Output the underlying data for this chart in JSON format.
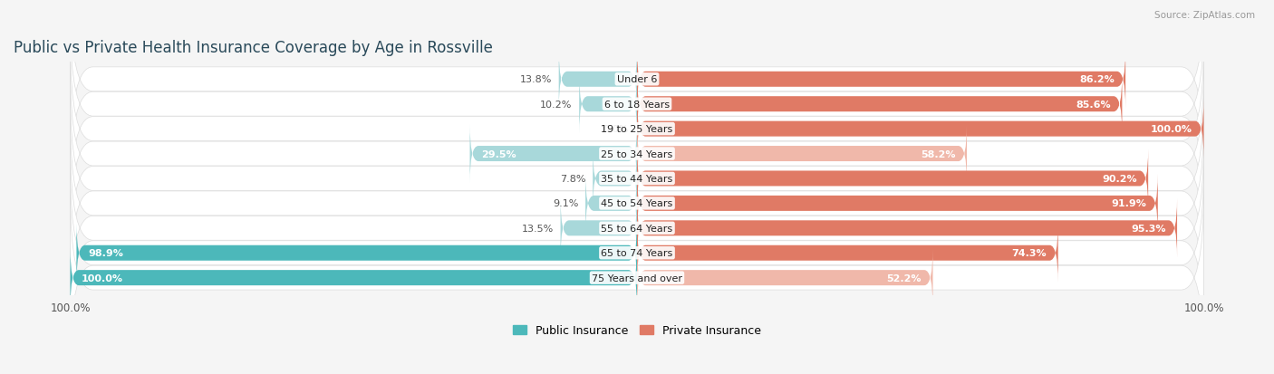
{
  "title": "Public vs Private Health Insurance Coverage by Age in Rossville",
  "source": "Source: ZipAtlas.com",
  "categories": [
    "Under 6",
    "6 to 18 Years",
    "19 to 25 Years",
    "25 to 34 Years",
    "35 to 44 Years",
    "45 to 54 Years",
    "55 to 64 Years",
    "65 to 74 Years",
    "75 Years and over"
  ],
  "public": [
    13.8,
    10.2,
    0.0,
    29.5,
    7.8,
    9.1,
    13.5,
    98.9,
    100.0
  ],
  "private": [
    86.2,
    85.6,
    100.0,
    58.2,
    90.2,
    91.9,
    95.3,
    74.3,
    52.2
  ],
  "public_color_full": "#4cb8ba",
  "public_color_light": "#a8d8da",
  "private_color_full": "#e07a65",
  "private_color_light": "#f0b8aa",
  "bg_color": "#f5f5f5",
  "row_bg_even": "#f0f0f0",
  "row_bg_odd": "#e8e8e8",
  "title_color": "#2a4a5a",
  "label_dark": "#444444",
  "label_white": "#ffffff",
  "max_val": 100.0,
  "bar_height": 0.62,
  "figsize": [
    14.06,
    4.14
  ],
  "dpi": 100,
  "full_threshold": 60.0,
  "pub_text_inside_threshold": 25.0,
  "priv_text_inside_threshold": 25.0
}
